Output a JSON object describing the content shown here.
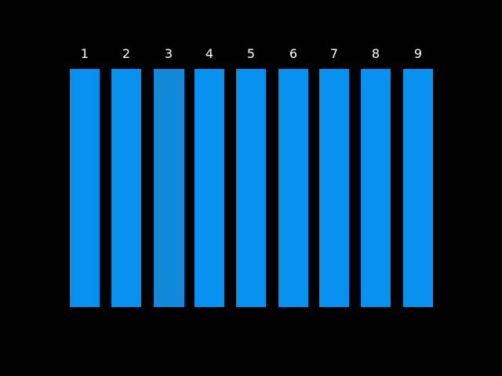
{
  "columns": [
    {
      "label": "1"
    },
    {
      "label": "2"
    },
    {
      "label": "3"
    },
    {
      "label": "4"
    },
    {
      "label": "5"
    },
    {
      "label": "6"
    },
    {
      "label": "7"
    },
    {
      "label": "8"
    },
    {
      "label": "9"
    }
  ]
}
